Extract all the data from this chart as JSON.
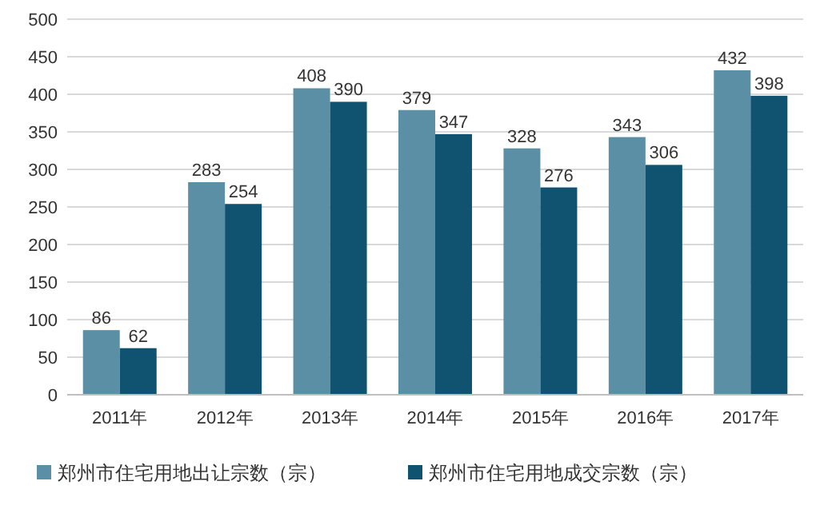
{
  "chart_data": {
    "type": "bar",
    "categories": [
      "2011年",
      "2012年",
      "2013年",
      "2014年",
      "2015年",
      "2016年",
      "2017年"
    ],
    "series": [
      {
        "name": "郑州市住宅用地出让宗数（宗）",
        "color": "#5b8fa5",
        "values": [
          86,
          283,
          408,
          379,
          328,
          343,
          432
        ]
      },
      {
        "name": "郑州市住宅用地成交宗数（宗）",
        "color": "#0f5370",
        "values": [
          62,
          254,
          390,
          347,
          276,
          306,
          398
        ]
      }
    ],
    "ylim": [
      0,
      500
    ],
    "yticks": [
      0,
      50,
      100,
      150,
      200,
      250,
      300,
      350,
      400,
      450,
      500
    ],
    "grid": "y",
    "legend": "bottom",
    "data_labels": true
  }
}
